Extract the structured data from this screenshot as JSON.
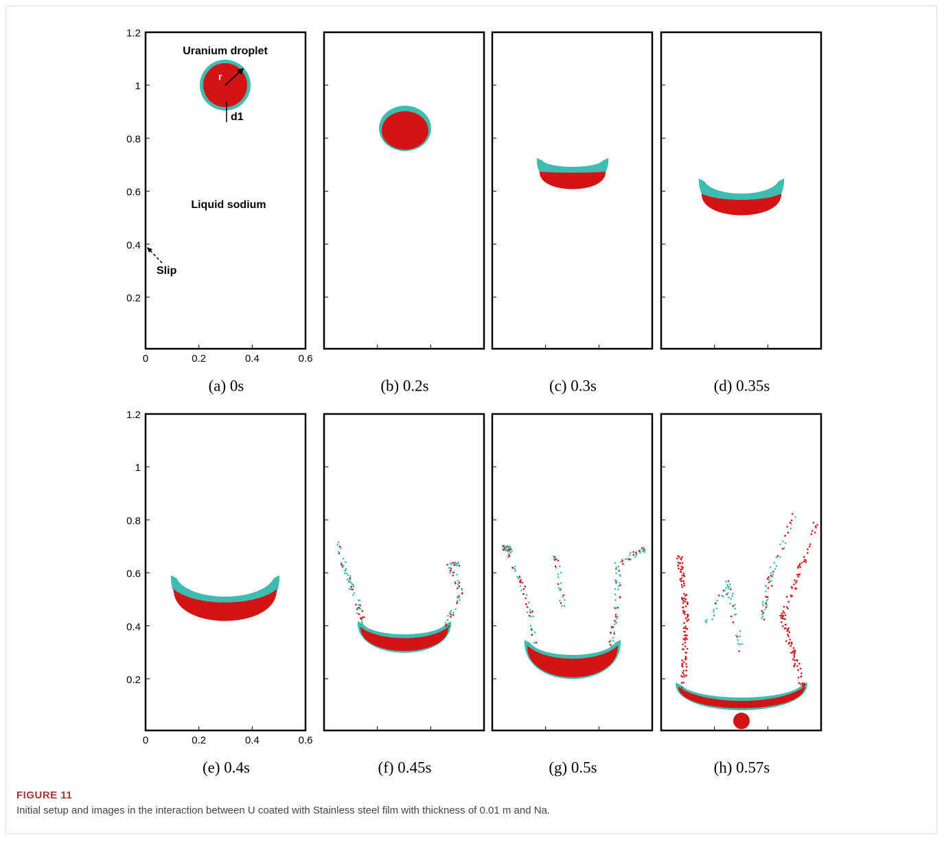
{
  "figure": {
    "label": "FIGURE 11",
    "caption": "Initial setup and images in the interaction between U coated with Stainless steel film with thickness of 0.01 m and Na."
  },
  "axes": {
    "yticks": [
      "1.2",
      "1",
      "0.8",
      "0.6",
      "0.4",
      "0.2"
    ],
    "xticks": [
      "0",
      "0.2",
      "0.4",
      "0.6"
    ]
  },
  "annotations": {
    "uranium_droplet": "Uranium droplet",
    "radius": "r",
    "thickness": "d1",
    "liquid_sodium": "Liquid sodium",
    "slip": "Slip"
  },
  "panels": [
    {
      "caption": "(a) 0s"
    },
    {
      "caption": "(b) 0.2s"
    },
    {
      "caption": "(c) 0.3s"
    },
    {
      "caption": "(d) 0.35s"
    },
    {
      "caption": "(e) 0.4s"
    },
    {
      "caption": "(f) 0.45s"
    },
    {
      "caption": "(g) 0.5s"
    },
    {
      "caption": "(h) 0.57s"
    }
  ]
}
